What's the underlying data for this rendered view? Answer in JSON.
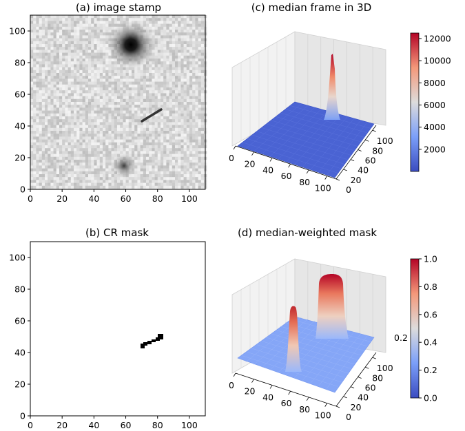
{
  "figure": {
    "panels": [
      {
        "id": "a",
        "title": "(a) image stamp",
        "type": "image",
        "xticks": [
          "0",
          "20",
          "40",
          "60",
          "80",
          "100"
        ],
        "yticks": [
          "0",
          "20",
          "40",
          "60",
          "80",
          "100"
        ]
      },
      {
        "id": "b",
        "title": "(b) CR mask",
        "type": "image",
        "xticks": [
          "0",
          "20",
          "40",
          "60",
          "80",
          "100"
        ],
        "yticks": [
          "0",
          "20",
          "40",
          "60",
          "80",
          "100"
        ]
      },
      {
        "id": "c",
        "title": "(c) median frame in 3D",
        "type": "surface",
        "xticks": [
          "0",
          "20",
          "40",
          "60",
          "80",
          "100"
        ],
        "yticks": [
          "0",
          "20",
          "40",
          "60",
          "80",
          "100"
        ],
        "zticks": [],
        "colorbar_ticks": [
          "2000",
          "4000",
          "6000",
          "8000",
          "10000",
          "12000"
        ]
      },
      {
        "id": "d",
        "title": "(d) median-weighted mask",
        "type": "surface",
        "xticks": [
          "0",
          "20",
          "40",
          "60",
          "80",
          "100"
        ],
        "yticks": [
          "0",
          "20",
          "40",
          "60",
          "80",
          "100"
        ],
        "zticks": [
          "0.2"
        ],
        "colorbar_ticks": [
          "0.0",
          "0.2",
          "0.4",
          "0.6",
          "0.8",
          "1.0"
        ]
      }
    ]
  },
  "chart_data": [
    {
      "type": "heatmap",
      "title": "(a) image stamp",
      "xlim": [
        0,
        110
      ],
      "ylim": [
        0,
        110
      ],
      "colormap": "gray_r",
      "sources": [
        {
          "kind": "bright star",
          "x": 63,
          "y": 91
        },
        {
          "kind": "faint star",
          "x": 59,
          "y": 15
        },
        {
          "kind": "cosmic ray streak",
          "x_start": 70,
          "y_start": 44,
          "x_end": 83,
          "y_end": 50
        }
      ]
    },
    {
      "type": "heatmap",
      "title": "(b) CR mask",
      "xlim": [
        0,
        110
      ],
      "ylim": [
        0,
        110
      ],
      "colormap": "binary",
      "masked_region": {
        "x_start": 70,
        "y_start": 43,
        "x_end": 83,
        "y_end": 51
      }
    },
    {
      "type": "surface",
      "title": "(c) median frame in 3D",
      "xlim": [
        0,
        110
      ],
      "ylim": [
        0,
        110
      ],
      "colormap": "coolwarm",
      "colorbar_range": [
        0,
        12500
      ],
      "peaks": [
        {
          "x": 63,
          "y": 91,
          "z": 12300
        }
      ],
      "background": 150
    },
    {
      "type": "surface",
      "title": "(d) median-weighted mask",
      "xlim": [
        0,
        110
      ],
      "ylim": [
        0,
        110
      ],
      "colormap": "coolwarm",
      "colorbar_range": [
        0.0,
        1.0
      ],
      "baseline": 0.25,
      "plateaus": [
        {
          "x": 63,
          "y": 91,
          "z": 1.0
        },
        {
          "x": 59,
          "y": 15,
          "z": 0.9
        }
      ]
    }
  ]
}
